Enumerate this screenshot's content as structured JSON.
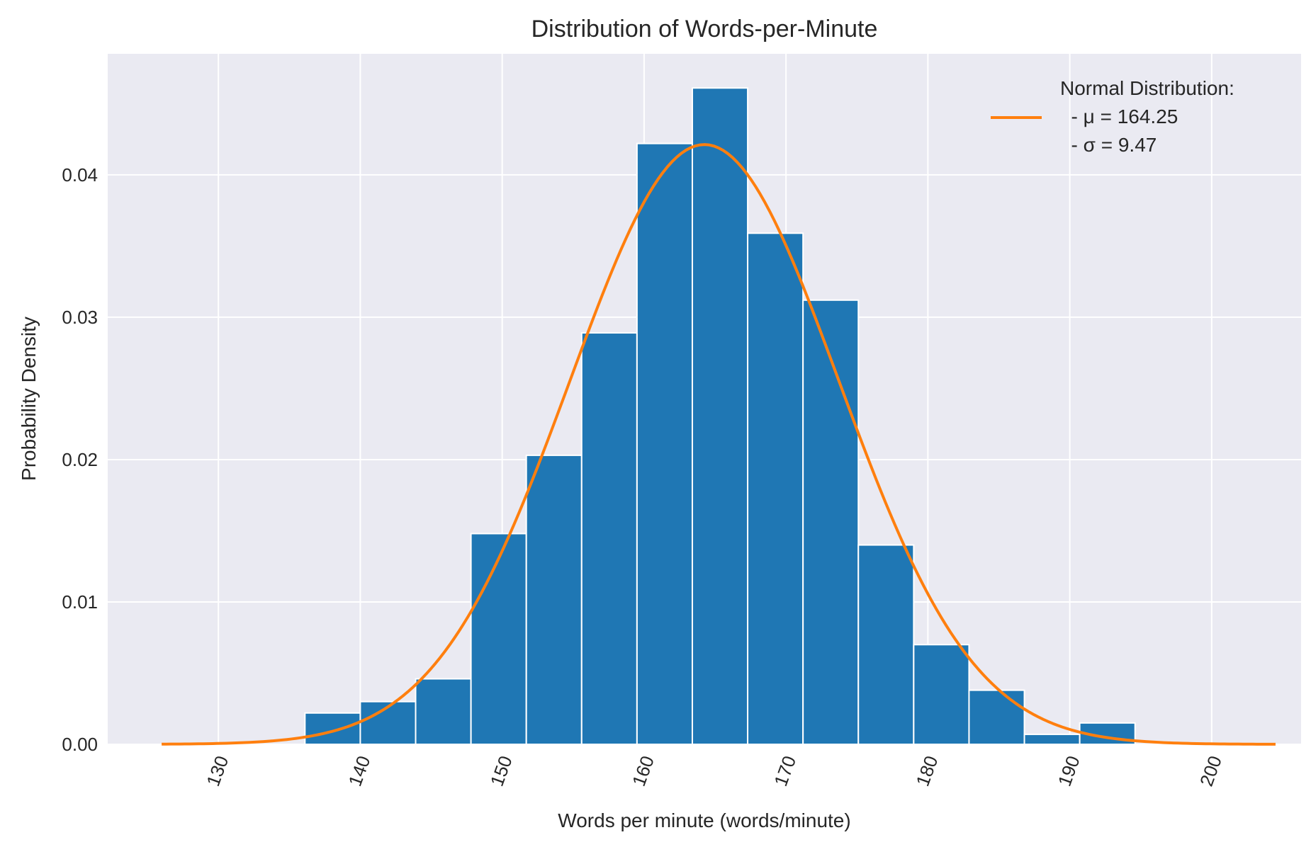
{
  "chart_data": {
    "type": "bar",
    "title": "Distribution of Words-per-Minute",
    "xlabel": "Words per minute (words/minute)",
    "ylabel": "Probability Density",
    "xlim": [
      122.2,
      206.3
    ],
    "ylim": [
      0,
      0.0485
    ],
    "x_ticks": [
      130,
      140,
      150,
      160,
      170,
      180,
      190,
      200
    ],
    "x_tick_labels": [
      "130",
      "140",
      "150",
      "160",
      "170",
      "180",
      "190",
      "200"
    ],
    "y_ticks": [
      0,
      0.01,
      0.02,
      0.03,
      0.04
    ],
    "y_tick_labels": [
      "0.00",
      "0.01",
      "0.02",
      "0.03",
      "0.04"
    ],
    "grid": true,
    "bin_edges": [
      136.1,
      140.0,
      143.9,
      147.8,
      151.7,
      155.6,
      159.5,
      163.4,
      167.3,
      171.2,
      175.1,
      179.0,
      182.9,
      186.8,
      190.7,
      194.6
    ],
    "values": [
      0.0022,
      0.003,
      0.0046,
      0.0148,
      0.0203,
      0.0289,
      0.0422,
      0.0461,
      0.0359,
      0.0312,
      0.014,
      0.007,
      0.0038,
      0.0007,
      0.0015
    ],
    "bar_color": "#1f77b4",
    "curve": {
      "name": "Normal Distribution",
      "mu": 164.25,
      "sigma": 9.47,
      "x_range": [
        126.0,
        204.5
      ],
      "color": "#ff7f0e"
    },
    "legend": {
      "location": "top-right",
      "title_line": "Normal Distribution:",
      "mu_line": "  - μ = 164.25",
      "sigma_line": "  - σ = 9.47"
    },
    "background_color": "#eaeaf2",
    "grid_color": "#ffffff"
  }
}
